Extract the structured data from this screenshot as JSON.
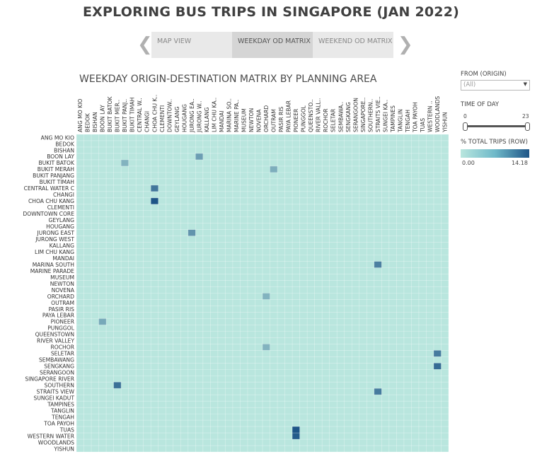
{
  "title": "EXPLORING BUS TRIPS IN SINGAPORE (JAN 2022)",
  "nav": {
    "prev_arrow": "❮",
    "next_arrow": "❯",
    "tabs": [
      {
        "label": "MAP VIEW",
        "active": false
      },
      {
        "label": "WEEKDAY OD MATRIX",
        "active": true
      },
      {
        "label": "WEEKEND OD MATRIX",
        "active": false
      }
    ]
  },
  "controls": {
    "origin_label": "FROM (ORIGIN)",
    "origin_value": "(All)",
    "time_label": "TIME OF DAY",
    "time_min": "0",
    "time_max": "23",
    "legend_label": "% TOTAL TRIPS (ROW)",
    "legend_min": "0.00",
    "legend_max": "14.18"
  },
  "chart_data": {
    "type": "heatmap",
    "title": "WEEKDAY ORIGIN-DESTINATION MATRIX BY PLANNING AREA",
    "colorscale": [
      "#b9e6de",
      "#1e5587"
    ],
    "value_range": [
      0.0,
      14.18
    ],
    "row_labels": [
      "ANG MO KIO",
      "BEDOK",
      "BISHAN",
      "BOON LAY",
      "BUKIT BATOK",
      "BUKIT MERAH",
      "BUKIT PANJANG",
      "BUKIT TIMAH",
      "CENTRAL WATER C",
      "CHANGI",
      "CHOA CHU KANG",
      "CLEMENTI",
      "DOWNTOWN CORE",
      "GEYLANG",
      "HOUGANG",
      "JURONG EAST",
      "JURONG WEST",
      "KALLANG",
      "LIM CHU KANG",
      "MANDAI",
      "MARINA SOUTH",
      "MARINE PARADE",
      "MUSEUM",
      "NEWTON",
      "NOVENA",
      "ORCHARD",
      "OUTRAM",
      "PASIR RIS",
      "PAYA LEBAR",
      "PIONEER",
      "PUNGGOL",
      "QUEENSTOWN",
      "RIVER VALLEY",
      "ROCHOR",
      "SELETAR",
      "SEMBAWANG",
      "SENGKANG",
      "SERANGOON",
      "SINGAPORE RIVER",
      "SOUTHERN",
      "STRAITS VIEW",
      "SUNGEI KADUT",
      "TAMPINES",
      "TANGLIN",
      "TENGAH",
      "TOA PAYOH",
      "TUAS",
      "WESTERN WATER",
      "WOODLANDS",
      "YISHUN"
    ],
    "column_labels": [
      "ANG MO KIO",
      "BEDOK",
      "BISHAN",
      "BOON LAY",
      "BUKIT BATOK",
      "BUKIT MER..",
      "BUKIT PANJ..",
      "BUKIT TIMAH",
      "CENTRAL W..",
      "CHANGI",
      "CHOA CHU K..",
      "CLEMENTI",
      "DOWNTOW..",
      "GEYLANG",
      "HOUGANG",
      "JURONG EA..",
      "JURONG W..",
      "KALLANG",
      "LIM CHU KA..",
      "MANDAI",
      "MARINA SO..",
      "MARINE PA..",
      "MUSEUM",
      "NEWTON",
      "NOVENA",
      "ORCHARD",
      "OUTRAM",
      "PASIR RIS",
      "PAYA LEBAR",
      "PIONEER",
      "PUNGGOL",
      "QUEENSTO..",
      "RIVER VALL..",
      "ROCHOR",
      "SELETAR",
      "SEMBAWA..",
      "SENGKANG",
      "SERANGOON",
      "SINGAPORE..",
      "SOUTHERN..",
      "STRAITS VIE..",
      "SUNGEI KA..",
      "TAMPINES",
      "TANGLIN",
      "TENGAH",
      "TOA PAYOH",
      "TUAS",
      "WESTERN ..",
      "WOODLANDS",
      "YISHUN"
    ],
    "highlight_cells": [
      {
        "row": "CENTRAL WATER C",
        "col": "CHOA CHU K..",
        "value": 11.0
      },
      {
        "row": "CHOA CHU KANG",
        "col": "CHOA CHU K..",
        "value": 14.18
      },
      {
        "row": "BOON LAY",
        "col": "JURONG W..",
        "value": 7.0
      },
      {
        "row": "JURONG EAST",
        "col": "JURONG EA..",
        "value": 8.0
      },
      {
        "row": "MARINA SOUTH",
        "col": "STRAITS VIE..",
        "value": 10.0
      },
      {
        "row": "SOUTHERN",
        "col": "BUKIT MER..",
        "value": 11.5
      },
      {
        "row": "STRAITS VIEW",
        "col": "STRAITS VIE..",
        "value": 10.5
      },
      {
        "row": "SELETAR",
        "col": "WOODLANDS",
        "value": 10.5
      },
      {
        "row": "SENGKANG",
        "col": "WOODLANDS",
        "value": 12.0
      },
      {
        "row": "TUAS",
        "col": "PIONEER",
        "value": 14.18
      },
      {
        "row": "WESTERN WATER",
        "col": "PIONEER",
        "value": 13.5
      },
      {
        "row": "PIONEER",
        "col": "BOON LAY",
        "value": 6.0
      },
      {
        "row": "ORCHARD",
        "col": "ORCHARD",
        "value": 5.0
      },
      {
        "row": "BUKIT MERAH",
        "col": "OUTRAM",
        "value": 5.5
      },
      {
        "row": "BUKIT BATOK",
        "col": "BUKIT PANJ..",
        "value": 5.0
      },
      {
        "row": "ROCHOR",
        "col": "ORCHARD",
        "value": 5.0
      }
    ]
  }
}
